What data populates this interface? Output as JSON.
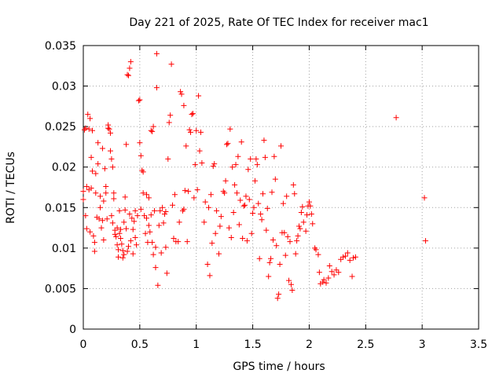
{
  "chart_data": {
    "type": "scatter",
    "title": "Day 221 of 2025, Rate Of TEC Index for receiver mac1",
    "xlabel": "GPS time / hours",
    "ylabel": "ROTI / TECUs",
    "xlim": [
      0,
      3.5
    ],
    "ylim": [
      0,
      0.035
    ],
    "xticks": [
      0,
      0.5,
      1,
      1.5,
      2,
      2.5,
      3,
      3.5
    ],
    "xtick_labels": [
      "0",
      "0.5",
      "1",
      "1.5",
      "2",
      "2.5",
      "3",
      "3.5"
    ],
    "yticks": [
      0,
      0.005,
      0.01,
      0.015,
      0.02,
      0.025,
      0.03,
      0.035
    ],
    "ytick_labels": [
      "0",
      "0.005",
      "0.01",
      "0.015",
      "0.02",
      "0.025",
      "0.03",
      "0.035"
    ],
    "grid": true,
    "marker": "+",
    "color": "#ff0000",
    "series": [
      {
        "name": "ROTI",
        "points": [
          [
            0.0,
            0.017
          ],
          [
            0.0,
            0.016
          ],
          [
            0.01,
            0.0246
          ],
          [
            0.02,
            0.0248
          ],
          [
            0.02,
            0.014
          ],
          [
            0.03,
            0.0124
          ],
          [
            0.03,
            0.0176
          ],
          [
            0.04,
            0.0265
          ],
          [
            0.05,
            0.0247
          ],
          [
            0.05,
            0.0172
          ],
          [
            0.06,
            0.026
          ],
          [
            0.06,
            0.012
          ],
          [
            0.07,
            0.0212
          ],
          [
            0.07,
            0.0174
          ],
          [
            0.08,
            0.0245
          ],
          [
            0.08,
            0.0195
          ],
          [
            0.09,
            0.0115
          ],
          [
            0.1,
            0.0096
          ],
          [
            0.1,
            0.0107
          ],
          [
            0.11,
            0.0168
          ],
          [
            0.11,
            0.0192
          ],
          [
            0.12,
            0.0138
          ],
          [
            0.13,
            0.023
          ],
          [
            0.13,
            0.0204
          ],
          [
            0.14,
            0.0136
          ],
          [
            0.15,
            0.0164
          ],
          [
            0.15,
            0.015
          ],
          [
            0.16,
            0.0125
          ],
          [
            0.17,
            0.0223
          ],
          [
            0.17,
            0.0134
          ],
          [
            0.18,
            0.011
          ],
          [
            0.18,
            0.0158
          ],
          [
            0.19,
            0.0198
          ],
          [
            0.2,
            0.0176
          ],
          [
            0.2,
            0.0168
          ],
          [
            0.21,
            0.0136
          ],
          [
            0.22,
            0.0252
          ],
          [
            0.22,
            0.0248
          ],
          [
            0.23,
            0.0247
          ],
          [
            0.24,
            0.0242
          ],
          [
            0.24,
            0.022
          ],
          [
            0.25,
            0.021
          ],
          [
            0.25,
            0.014
          ],
          [
            0.26,
            0.02
          ],
          [
            0.26,
            0.0131
          ],
          [
            0.27,
            0.0168
          ],
          [
            0.27,
            0.0161
          ],
          [
            0.28,
            0.0122
          ],
          [
            0.28,
            0.0117
          ],
          [
            0.29,
            0.0114
          ],
          [
            0.3,
            0.0125
          ],
          [
            0.3,
            0.0104
          ],
          [
            0.31,
            0.0098
          ],
          [
            0.31,
            0.0089
          ],
          [
            0.32,
            0.0118
          ],
          [
            0.32,
            0.0146
          ],
          [
            0.33,
            0.0112
          ],
          [
            0.33,
            0.0123
          ],
          [
            0.34,
            0.0105
          ],
          [
            0.35,
            0.0097
          ],
          [
            0.35,
            0.0088
          ],
          [
            0.36,
            0.0092
          ],
          [
            0.36,
            0.0132
          ],
          [
            0.37,
            0.0147
          ],
          [
            0.37,
            0.0163
          ],
          [
            0.38,
            0.0124
          ],
          [
            0.38,
            0.0228
          ],
          [
            0.39,
            0.0314
          ],
          [
            0.39,
            0.0096
          ],
          [
            0.4,
            0.0313
          ],
          [
            0.4,
            0.0102
          ],
          [
            0.41,
            0.0322
          ],
          [
            0.41,
            0.0142
          ],
          [
            0.42,
            0.033
          ],
          [
            0.42,
            0.0109
          ],
          [
            0.43,
            0.0137
          ],
          [
            0.44,
            0.0093
          ],
          [
            0.44,
            0.0123
          ],
          [
            0.45,
            0.0133
          ],
          [
            0.46,
            0.0113
          ],
          [
            0.46,
            0.0146
          ],
          [
            0.47,
            0.0104
          ],
          [
            0.48,
            0.014
          ],
          [
            0.49,
            0.0282
          ],
          [
            0.5,
            0.0283
          ],
          [
            0.5,
            0.023
          ],
          [
            0.51,
            0.0214
          ],
          [
            0.51,
            0.0148
          ],
          [
            0.52,
            0.0196
          ],
          [
            0.53,
            0.0194
          ],
          [
            0.53,
            0.0168
          ],
          [
            0.54,
            0.014
          ],
          [
            0.55,
            0.0118
          ],
          [
            0.56,
            0.0166
          ],
          [
            0.56,
            0.0137
          ],
          [
            0.57,
            0.0107
          ],
          [
            0.58,
            0.0162
          ],
          [
            0.58,
            0.0128
          ],
          [
            0.59,
            0.012
          ],
          [
            0.6,
            0.0245
          ],
          [
            0.6,
            0.0141
          ],
          [
            0.61,
            0.0244
          ],
          [
            0.61,
            0.0107
          ],
          [
            0.62,
            0.025
          ],
          [
            0.62,
            0.0092
          ],
          [
            0.63,
            0.0146
          ],
          [
            0.64,
            0.0101
          ],
          [
            0.64,
            0.0076
          ],
          [
            0.65,
            0.0298
          ],
          [
            0.65,
            0.034
          ],
          [
            0.66,
            0.0054
          ],
          [
            0.67,
            0.0128
          ],
          [
            0.68,
            0.0146
          ],
          [
            0.69,
            0.0094
          ],
          [
            0.7,
            0.015
          ],
          [
            0.71,
            0.0131
          ],
          [
            0.72,
            0.0142
          ],
          [
            0.73,
            0.0101
          ],
          [
            0.73,
            0.0145
          ],
          [
            0.74,
            0.0069
          ],
          [
            0.75,
            0.021
          ],
          [
            0.76,
            0.0255
          ],
          [
            0.77,
            0.0264
          ],
          [
            0.78,
            0.0327
          ],
          [
            0.79,
            0.0153
          ],
          [
            0.8,
            0.0112
          ],
          [
            0.81,
            0.0166
          ],
          [
            0.82,
            0.0108
          ],
          [
            0.84,
            0.0108
          ],
          [
            0.85,
            0.0132
          ],
          [
            0.86,
            0.0293
          ],
          [
            0.87,
            0.029
          ],
          [
            0.88,
            0.0146
          ],
          [
            0.89,
            0.0276
          ],
          [
            0.89,
            0.0148
          ],
          [
            0.9,
            0.0171
          ],
          [
            0.91,
            0.0226
          ],
          [
            0.92,
            0.0108
          ],
          [
            0.93,
            0.017
          ],
          [
            0.94,
            0.0246
          ],
          [
            0.95,
            0.0243
          ],
          [
            0.96,
            0.0265
          ],
          [
            0.97,
            0.0266
          ],
          [
            0.98,
            0.0162
          ],
          [
            0.99,
            0.0203
          ],
          [
            1.0,
            0.0245
          ],
          [
            1.01,
            0.0172
          ],
          [
            1.02,
            0.0288
          ],
          [
            1.03,
            0.022
          ],
          [
            1.04,
            0.0243
          ],
          [
            1.05,
            0.0205
          ],
          [
            1.07,
            0.0132
          ],
          [
            1.08,
            0.0157
          ],
          [
            1.1,
            0.008
          ],
          [
            1.11,
            0.015
          ],
          [
            1.12,
            0.0066
          ],
          [
            1.13,
            0.0166
          ],
          [
            1.14,
            0.0106
          ],
          [
            1.15,
            0.0201
          ],
          [
            1.16,
            0.0204
          ],
          [
            1.17,
            0.0118
          ],
          [
            1.18,
            0.0146
          ],
          [
            1.2,
            0.0093
          ],
          [
            1.21,
            0.0127
          ],
          [
            1.22,
            0.0139
          ],
          [
            1.24,
            0.017
          ],
          [
            1.25,
            0.0168
          ],
          [
            1.26,
            0.0183
          ],
          [
            1.27,
            0.0228
          ],
          [
            1.28,
            0.0229
          ],
          [
            1.29,
            0.0125
          ],
          [
            1.3,
            0.0247
          ],
          [
            1.31,
            0.0113
          ],
          [
            1.32,
            0.02
          ],
          [
            1.33,
            0.0144
          ],
          [
            1.34,
            0.0178
          ],
          [
            1.35,
            0.0203
          ],
          [
            1.36,
            0.0168
          ],
          [
            1.37,
            0.0213
          ],
          [
            1.38,
            0.0129
          ],
          [
            1.39,
            0.0159
          ],
          [
            1.4,
            0.0231
          ],
          [
            1.41,
            0.0112
          ],
          [
            1.42,
            0.0152
          ],
          [
            1.43,
            0.0153
          ],
          [
            1.44,
            0.0164
          ],
          [
            1.45,
            0.0109
          ],
          [
            1.46,
            0.0197
          ],
          [
            1.47,
            0.016
          ],
          [
            1.48,
            0.021
          ],
          [
            1.49,
            0.0118
          ],
          [
            1.5,
            0.0143
          ],
          [
            1.51,
            0.015
          ],
          [
            1.52,
            0.0183
          ],
          [
            1.53,
            0.021
          ],
          [
            1.54,
            0.0203
          ],
          [
            1.55,
            0.0155
          ],
          [
            1.56,
            0.0087
          ],
          [
            1.57,
            0.0142
          ],
          [
            1.58,
            0.0135
          ],
          [
            1.59,
            0.0167
          ],
          [
            1.6,
            0.0233
          ],
          [
            1.61,
            0.0212
          ],
          [
            1.62,
            0.0122
          ],
          [
            1.63,
            0.0149
          ],
          [
            1.64,
            0.0065
          ],
          [
            1.65,
            0.0082
          ],
          [
            1.66,
            0.0087
          ],
          [
            1.67,
            0.0169
          ],
          [
            1.68,
            0.011
          ],
          [
            1.69,
            0.0213
          ],
          [
            1.7,
            0.0185
          ],
          [
            1.71,
            0.0103
          ],
          [
            1.72,
            0.0038
          ],
          [
            1.73,
            0.0043
          ],
          [
            1.74,
            0.008
          ],
          [
            1.75,
            0.0226
          ],
          [
            1.76,
            0.0119
          ],
          [
            1.77,
            0.0155
          ],
          [
            1.78,
            0.0119
          ],
          [
            1.79,
            0.0091
          ],
          [
            1.8,
            0.0164
          ],
          [
            1.81,
            0.0114
          ],
          [
            1.82,
            0.006
          ],
          [
            1.83,
            0.0108
          ],
          [
            1.84,
            0.0055
          ],
          [
            1.85,
            0.0048
          ],
          [
            1.86,
            0.0178
          ],
          [
            1.87,
            0.0167
          ],
          [
            1.88,
            0.0093
          ],
          [
            1.89,
            0.0109
          ],
          [
            1.9,
            0.0115
          ],
          [
            1.91,
            0.0127
          ],
          [
            1.92,
            0.0124
          ],
          [
            1.93,
            0.0144
          ],
          [
            1.94,
            0.0151
          ],
          [
            1.95,
            0.0132
          ],
          [
            1.97,
            0.0121
          ],
          [
            1.98,
            0.0141
          ],
          [
            1.99,
            0.0152
          ],
          [
            2.0,
            0.0157
          ],
          [
            2.01,
            0.0152
          ],
          [
            2.02,
            0.0142
          ],
          [
            2.03,
            0.013
          ],
          [
            2.05,
            0.01
          ],
          [
            2.06,
            0.0098
          ],
          [
            2.08,
            0.0092
          ],
          [
            2.09,
            0.007
          ],
          [
            2.1,
            0.0056
          ],
          [
            2.12,
            0.0058
          ],
          [
            2.13,
            0.0061
          ],
          [
            2.15,
            0.0057
          ],
          [
            2.17,
            0.0063
          ],
          [
            2.18,
            0.0078
          ],
          [
            2.2,
            0.0071
          ],
          [
            2.22,
            0.0067
          ],
          [
            2.24,
            0.0073
          ],
          [
            2.26,
            0.007
          ],
          [
            2.28,
            0.0086
          ],
          [
            2.3,
            0.0089
          ],
          [
            2.32,
            0.009
          ],
          [
            2.34,
            0.0094
          ],
          [
            2.36,
            0.0085
          ],
          [
            2.38,
            0.0065
          ],
          [
            2.39,
            0.0088
          ],
          [
            2.41,
            0.0089
          ],
          [
            2.77,
            0.0261
          ],
          [
            3.02,
            0.0162
          ],
          [
            3.03,
            0.0109
          ]
        ]
      }
    ]
  }
}
